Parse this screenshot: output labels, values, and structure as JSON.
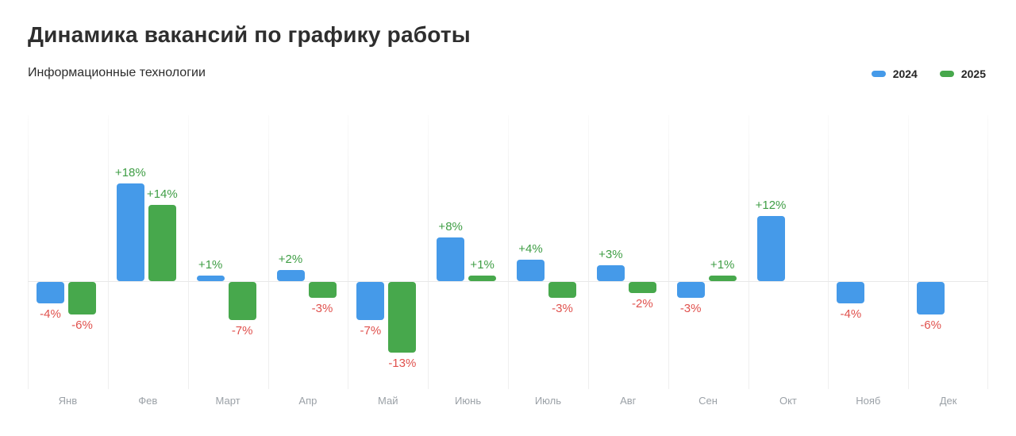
{
  "header": {
    "title": "Динамика вакансий по графику работы",
    "subtitle": "Информационные технологии"
  },
  "legend": {
    "items": [
      {
        "label": "2024",
        "color": "#459ae9"
      },
      {
        "label": "2025",
        "color": "#47a84c"
      }
    ]
  },
  "colors": {
    "series_2024": "#459ae9",
    "series_2025": "#47a84c",
    "positive_label": "#3f9e45",
    "negative_label": "#e0514d",
    "axis_label": "#9ba1a7",
    "gridline": "#efefef",
    "title_text": "#2e2e2e"
  },
  "chart_data": {
    "type": "bar",
    "title": "Динамика вакансий по графику работы",
    "subtitle": "Информационные технологии",
    "unit": "%",
    "categories": [
      "Янв",
      "Фев",
      "Март",
      "Апр",
      "Май",
      "Июнь",
      "Июль",
      "Авг",
      "Сен",
      "Окт",
      "Нояб",
      "Дек"
    ],
    "series": [
      {
        "name": "2024",
        "color": "#459ae9",
        "values": [
          -4,
          18,
          1,
          2,
          -7,
          8,
          4,
          3,
          -3,
          12,
          -4,
          -6
        ],
        "labels": [
          "-4%",
          "+18%",
          "+1%",
          "+2%",
          "-7%",
          "+8%",
          "+4%",
          "+3%",
          "-3%",
          "+12%",
          "-4%",
          "-6%"
        ]
      },
      {
        "name": "2025",
        "color": "#47a84c",
        "values": [
          -6,
          14,
          -7,
          -3,
          -13,
          1,
          -3,
          -2,
          1,
          null,
          null,
          null
        ],
        "labels": [
          "-6%",
          "+14%",
          "-7%",
          "-3%",
          "-13%",
          "+1%",
          "-3%",
          "-2%",
          "+1%",
          null,
          null,
          null
        ]
      }
    ],
    "ylim": [
      -20,
      31
    ],
    "grid": "vertical",
    "legend_position": "top-right",
    "xlabel": "",
    "ylabel": ""
  }
}
